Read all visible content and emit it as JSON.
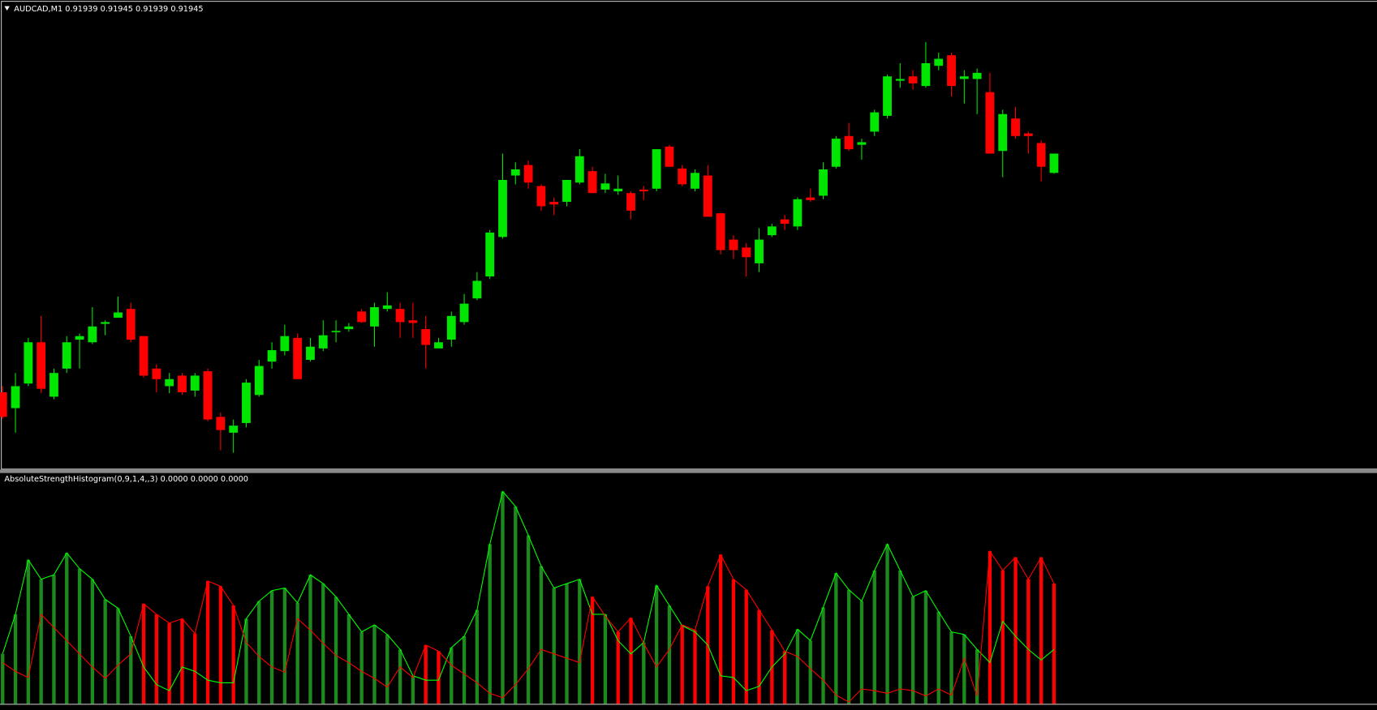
{
  "chart_data": [
    {
      "type": "candlestick",
      "title": "AUDCAD,M1  0.91939 0.91945 0.91939 0.91945",
      "up_color": "#00e600",
      "down_color": "#ff0000",
      "ylim": [
        0,
        535
      ],
      "open": [
        88,
        70,
        98,
        145,
        83,
        115,
        148,
        145,
        166,
        173,
        183,
        152,
        115,
        95,
        107,
        90,
        112,
        60,
        42,
        53,
        85,
        123,
        135,
        150,
        125,
        138,
        157,
        160,
        180,
        163,
        183,
        183,
        170,
        160,
        138,
        148,
        168,
        195,
        220,
        265,
        335,
        347,
        323,
        305,
        305,
        327,
        340,
        319,
        317,
        315,
        319,
        320,
        368,
        343,
        320,
        335,
        292,
        262,
        253,
        235,
        267,
        285,
        277,
        310,
        312,
        345,
        380,
        370,
        385,
        403,
        443,
        448,
        437,
        460,
        472,
        445,
        445,
        430,
        363,
        400,
        383,
        372,
        338
      ],
      "high": [
        95,
        110,
        150,
        175,
        115,
        152,
        155,
        185,
        170,
        197,
        190,
        152,
        120,
        110,
        110,
        110,
        115,
        65,
        57,
        103,
        125,
        145,
        165,
        155,
        150,
        170,
        170,
        167,
        183,
        190,
        202,
        190,
        190,
        175,
        150,
        180,
        200,
        225,
        273,
        360,
        350,
        352,
        325,
        310,
        330,
        365,
        345,
        337,
        335,
        317,
        323,
        365,
        370,
        347,
        342,
        347,
        292,
        267,
        258,
        275,
        280,
        290,
        310,
        320,
        350,
        380,
        395,
        377,
        410,
        450,
        463,
        455,
        487,
        475,
        475,
        455,
        457,
        452,
        410,
        413,
        385,
        375,
        360
      ],
      "low": [
        58,
        42,
        95,
        87,
        80,
        110,
        115,
        143,
        153,
        173,
        145,
        105,
        88,
        87,
        85,
        83,
        55,
        22,
        19,
        48,
        83,
        115,
        130,
        103,
        123,
        135,
        145,
        157,
        167,
        140,
        180,
        150,
        150,
        115,
        138,
        140,
        165,
        193,
        217,
        263,
        325,
        320,
        295,
        290,
        300,
        325,
        315,
        315,
        313,
        285,
        307,
        317,
        345,
        323,
        317,
        288,
        245,
        240,
        220,
        225,
        265,
        273,
        273,
        305,
        308,
        343,
        363,
        353,
        380,
        400,
        435,
        433,
        435,
        455,
        425,
        417,
        405,
        360,
        333,
        377,
        360,
        328,
        337
      ],
      "close": [
        60,
        95,
        145,
        92,
        110,
        145,
        152,
        163,
        168,
        179,
        148,
        107,
        103,
        103,
        88,
        107,
        57,
        45,
        50,
        99,
        118,
        136,
        152,
        103,
        140,
        153,
        158,
        163,
        168,
        185,
        187,
        168,
        167,
        142,
        145,
        175,
        189,
        215,
        270,
        330,
        342,
        327,
        300,
        302,
        330,
        357,
        315,
        326,
        320,
        295,
        317,
        365,
        345,
        325,
        338,
        288,
        250,
        250,
        242,
        262,
        277,
        280,
        308,
        307,
        342,
        377,
        365,
        373,
        407,
        448,
        445,
        440,
        463,
        468,
        437,
        448,
        452,
        360,
        405,
        380,
        380,
        345,
        360
      ]
    },
    {
      "type": "histogram",
      "title": "AbsoluteStrengthHistogram(0,9,1,4,,3) 0.0000 0.0000 0.0000",
      "ylim": [
        0,
        264
      ],
      "bar_colors": [
        "#1d8a1d",
        "#ff0000"
      ],
      "series": [
        {
          "color": "#00ff00",
          "values": [
            57,
            102,
            164,
            142,
            147,
            172,
            154,
            142,
            119,
            109,
            77,
            42,
            22,
            15,
            42,
            37,
            27,
            24,
            24,
            97,
            117,
            129,
            132,
            115,
            147,
            137,
            122,
            102,
            82,
            90,
            79,
            62,
            32,
            27,
            27,
            64,
            77,
            107,
            182,
            242,
            225,
            192,
            157,
            132,
            137,
            142,
            102,
            102,
            72,
            57,
            70,
            135,
            112,
            89,
            82,
            67,
            32,
            30,
            15,
            20,
            42,
            57,
            85,
            72,
            110,
            149,
            130,
            117,
            152,
            182,
            152,
            122,
            129,
            105,
            82,
            79,
            62,
            47,
            94,
            77,
            62,
            50,
            62
          ]
        },
        {
          "color": "#ff0000",
          "values": [
            47,
            37,
            30,
            102,
            87,
            72,
            57,
            42,
            29,
            44,
            57,
            114,
            102,
            92,
            97,
            80,
            140,
            134,
            112,
            70,
            54,
            42,
            36,
            97,
            84,
            69,
            55,
            47,
            37,
            29,
            19,
            42,
            30,
            67,
            60,
            44,
            34,
            24,
            12,
            7,
            22,
            40,
            62,
            57,
            52,
            47,
            122,
            100,
            82,
            98,
            69,
            42,
            62,
            90,
            84,
            134,
            170,
            142,
            130,
            107,
            84,
            60,
            54,
            40,
            27,
            10,
            2,
            17,
            15,
            12,
            17,
            15,
            9,
            17,
            10,
            52,
            9,
            174,
            152,
            167,
            142,
            167,
            137
          ]
        }
      ]
    }
  ]
}
